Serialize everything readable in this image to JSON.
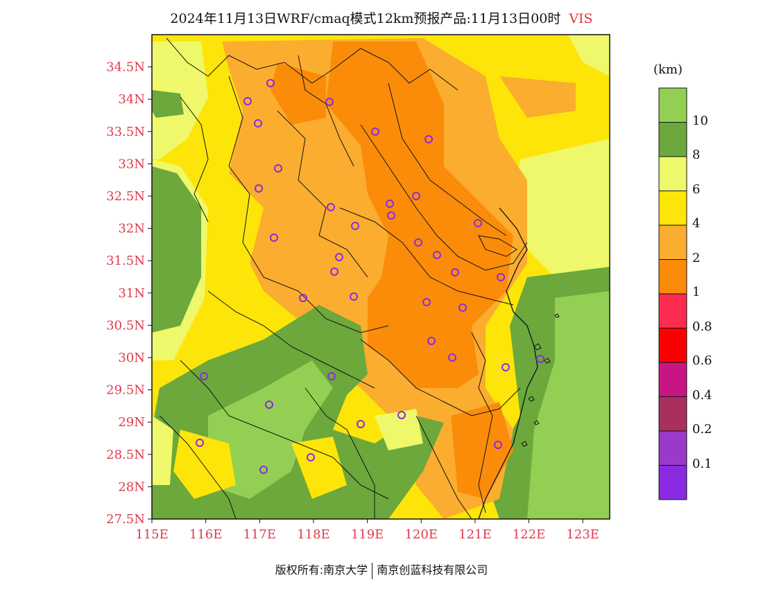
{
  "header": {
    "title": "2024年11月13日WRF/cmaq模式12km预报产品:11月13日00时",
    "variable": "VIS"
  },
  "map": {
    "lat_labels": [
      "34.5N",
      "34N",
      "33.5N",
      "33N",
      "32.5N",
      "32N",
      "31.5N",
      "31N",
      "30.5N",
      "30N",
      "29.5N",
      "29N",
      "28.5N",
      "28N",
      "27.5N"
    ],
    "lon_labels": [
      "115E",
      "116E",
      "117E",
      "118E",
      "119E",
      "120E",
      "121E",
      "122E",
      "123E"
    ],
    "lat_range": [
      27.5,
      35.0
    ],
    "lon_range": [
      115.0,
      123.5
    ],
    "station_color": "#8a2be2"
  },
  "colorbar": {
    "unit": "(km)",
    "labels": [
      "10",
      "8",
      "6",
      "4",
      "2",
      "1",
      "0.8",
      "0.6",
      "0.4",
      "0.2",
      "0.1"
    ],
    "colors": [
      "#93cf53",
      "#6ca83c",
      "#eef86a",
      "#fde50a",
      "#fbad2f",
      "#fb8c0a",
      "#fb2c50",
      "#fa0000",
      "#c91584",
      "#a92f5f",
      "#9c39cb",
      "#8a2be2"
    ]
  },
  "footer": {
    "left": "版权所有:南京大学",
    "right": "南京创蓝科技有限公司"
  }
}
